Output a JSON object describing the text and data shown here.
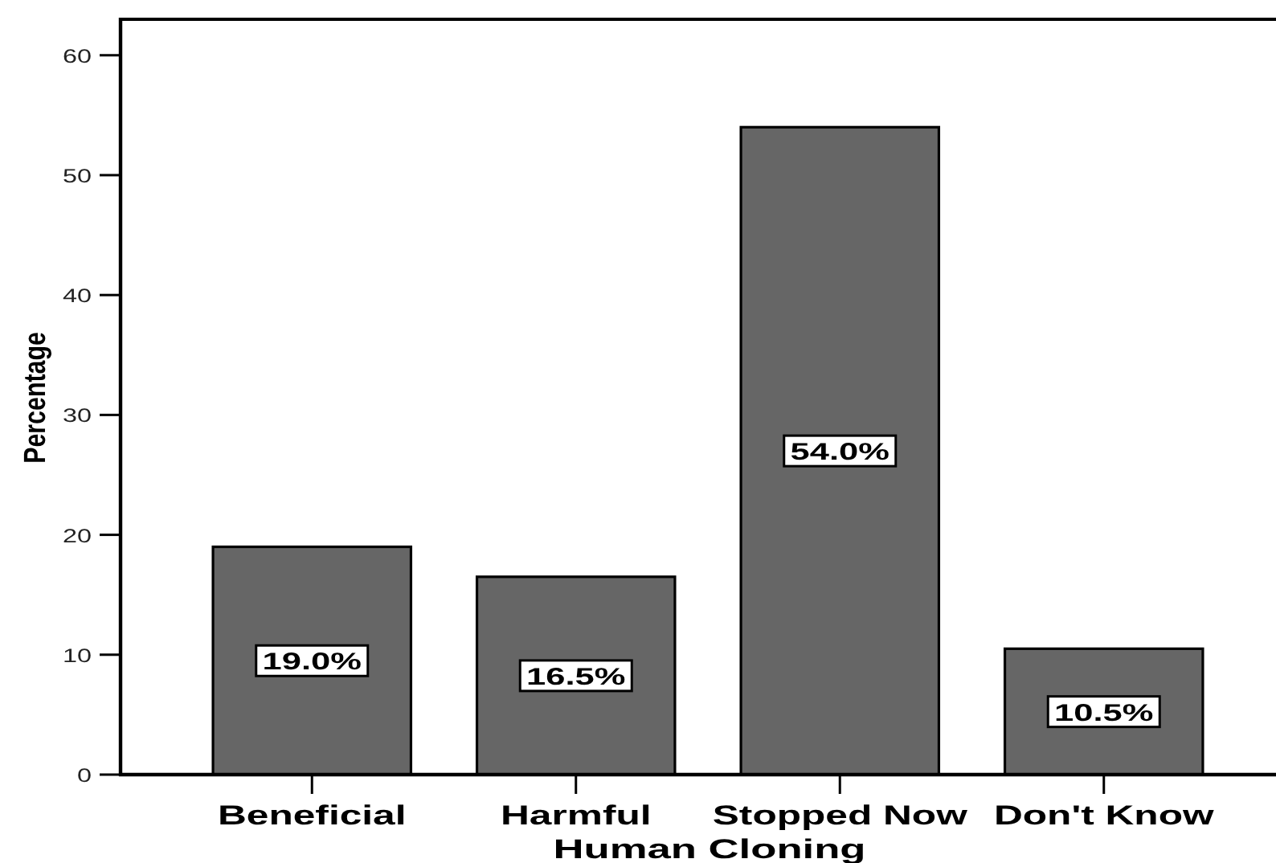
{
  "chart_data": {
    "type": "bar",
    "xlabel": "Human Cloning",
    "ylabel": "Percentage",
    "categories": [
      "Beneficial",
      "Harmful",
      "Stopped Now",
      "Don't Know"
    ],
    "values": [
      19.0,
      16.5,
      54.0,
      10.5
    ],
    "color": "#666666",
    "value_labels": [
      "19.0%",
      "16.5%",
      "54.0%",
      "10.5%"
    ],
    "ylim": [
      0,
      63
    ],
    "yticks": [
      0,
      10,
      20,
      30,
      40,
      50,
      60
    ]
  }
}
